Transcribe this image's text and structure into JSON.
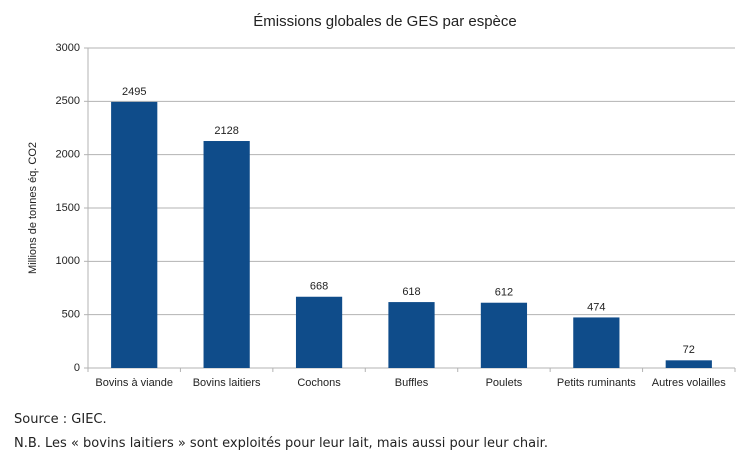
{
  "chart_data": {
    "type": "bar",
    "title": "Émissions globales de GES par espèce",
    "y_label": "Millions de tonnes éq. CO2",
    "categories": [
      "Bovins à viande",
      "Bovins laitiers",
      "Cochons",
      "Buffles",
      "Poulets",
      "Petits ruminants",
      "Autres volailles"
    ],
    "values": [
      2495,
      2128,
      668,
      618,
      612,
      474,
      72
    ],
    "color": "#0f4c8a",
    "ylim": [
      0,
      3000
    ],
    "yticks": [
      0,
      500,
      1000,
      1500,
      2000,
      2500,
      3000
    ],
    "grid": true
  },
  "notes": [
    "Source : GIEC.",
    "N.B. Les « bovins laitiers » sont exploités pour leur lait, mais aussi pour leur chair."
  ]
}
